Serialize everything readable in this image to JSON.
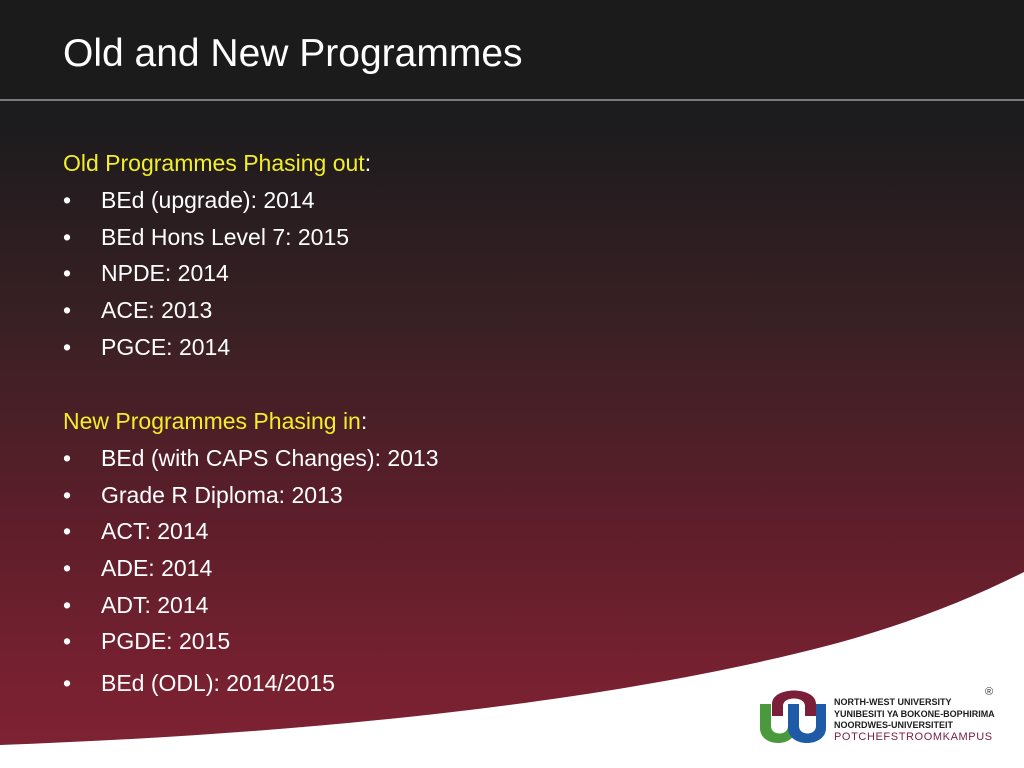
{
  "title": "Old and New Programmes",
  "old_section": {
    "heading": "Old Programmes Phasing out",
    "colon": ":",
    "items": [
      "BEd (upgrade): 2014",
      "BEd Hons Level 7: 2015",
      "NPDE: 2014",
      "ACE: 2013",
      "PGCE: 2014"
    ]
  },
  "new_section": {
    "heading": "New Programmes Phasing in",
    "colon": ":",
    "items": [
      "BEd (with CAPS Changes): 2013",
      "Grade R Diploma: 2013",
      "ACT: 2014",
      "ADE: 2014",
      "ADT: 2014",
      "PGDE: 2015",
      "BEd (ODL): 2014/2015"
    ]
  },
  "bullet_char": "•",
  "logo": {
    "lines": [
      "NORTH-WEST UNIVERSITY",
      "YUNIBESITI YA BOKONE-BOPHIRIMA",
      "NOORDWES-UNIVERSITEIT",
      "POTCHEFSTROOMKAMPUS"
    ],
    "registered_mark": "®"
  },
  "colors": {
    "heading_highlight": "#f2ee2a",
    "text": "#ffffff",
    "maroon": "#7b1e3a",
    "logo_green": "#4a9a3d",
    "logo_blue": "#1f5aa6"
  }
}
